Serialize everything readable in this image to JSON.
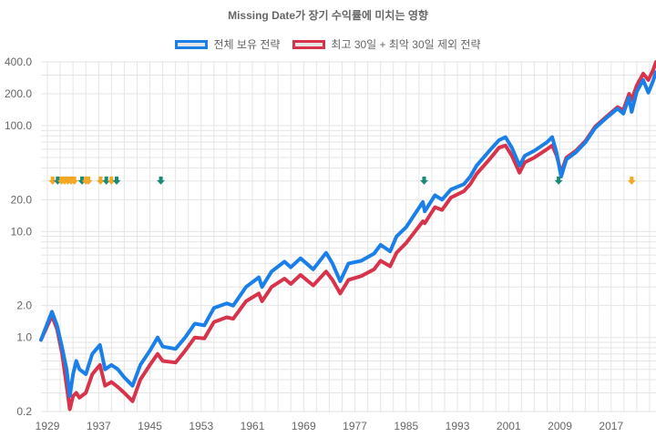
{
  "chart_data": {
    "type": "line",
    "title": "Missing Date가 장기 수익률에 미치는 영향",
    "y_scale": "log",
    "ylim": [
      0.2,
      400
    ],
    "y_ticks": [
      {
        "value": 400,
        "label": "400.0"
      },
      {
        "value": 200,
        "label": "200.0"
      },
      {
        "value": 100,
        "label": "100.0"
      },
      {
        "value": 20,
        "label": "20.0"
      },
      {
        "value": 10,
        "label": "10.0"
      },
      {
        "value": 2,
        "label": "2.0"
      },
      {
        "value": 1,
        "label": "1.0"
      },
      {
        "value": 0.2,
        "label": "0.2"
      }
    ],
    "xlim": [
      1928,
      2024
    ],
    "x_ticks": [
      "1929",
      "1937",
      "1945",
      "1953",
      "1961",
      "1969",
      "1977",
      "1985",
      "1993",
      "2001",
      "2009",
      "2017"
    ],
    "legend_position": "top",
    "series": [
      {
        "name": "전체 보유 전략",
        "color": "#1a7fe8",
        "points": [
          [
            1928.0,
            0.95
          ],
          [
            1929.7,
            1.75
          ],
          [
            1930.5,
            1.3
          ],
          [
            1931.3,
            0.8
          ],
          [
            1932.0,
            0.5
          ],
          [
            1932.5,
            0.28
          ],
          [
            1933.0,
            0.45
          ],
          [
            1933.5,
            0.6
          ],
          [
            1934.0,
            0.5
          ],
          [
            1935.0,
            0.45
          ],
          [
            1936.0,
            0.7
          ],
          [
            1937.2,
            0.85
          ],
          [
            1938.0,
            0.5
          ],
          [
            1939.0,
            0.55
          ],
          [
            1940.0,
            0.5
          ],
          [
            1941.0,
            0.42
          ],
          [
            1942.3,
            0.35
          ],
          [
            1943.5,
            0.55
          ],
          [
            1945.0,
            0.75
          ],
          [
            1946.2,
            1.0
          ],
          [
            1947.0,
            0.82
          ],
          [
            1949.0,
            0.78
          ],
          [
            1950.5,
            1.0
          ],
          [
            1952.0,
            1.35
          ],
          [
            1953.5,
            1.3
          ],
          [
            1955.0,
            1.9
          ],
          [
            1957.0,
            2.1
          ],
          [
            1958.0,
            2.0
          ],
          [
            1960.0,
            3.0
          ],
          [
            1962.0,
            3.7
          ],
          [
            1962.5,
            3.0
          ],
          [
            1964.0,
            4.2
          ],
          [
            1966.0,
            5.2
          ],
          [
            1967.0,
            4.6
          ],
          [
            1968.5,
            5.6
          ],
          [
            1970.5,
            4.4
          ],
          [
            1972.5,
            6.3
          ],
          [
            1973.5,
            5.0
          ],
          [
            1974.7,
            3.4
          ],
          [
            1976.0,
            5.0
          ],
          [
            1978.0,
            5.3
          ],
          [
            1980.0,
            6.2
          ],
          [
            1981.0,
            7.5
          ],
          [
            1982.5,
            6.5
          ],
          [
            1983.5,
            9.0
          ],
          [
            1985.0,
            11.0
          ],
          [
            1987.6,
            19.0
          ],
          [
            1987.9,
            15.5
          ],
          [
            1989.5,
            22.0
          ],
          [
            1990.6,
            20.0
          ],
          [
            1992.0,
            25.0
          ],
          [
            1994.0,
            28.0
          ],
          [
            1995.0,
            33.0
          ],
          [
            1996.0,
            42.0
          ],
          [
            1998.0,
            58.0
          ],
          [
            1999.5,
            73.0
          ],
          [
            2000.5,
            78.0
          ],
          [
            2001.5,
            62.0
          ],
          [
            2002.7,
            42.0
          ],
          [
            2003.5,
            52.0
          ],
          [
            2005.0,
            58.0
          ],
          [
            2007.0,
            70.0
          ],
          [
            2007.8,
            78.0
          ],
          [
            2008.5,
            55.0
          ],
          [
            2009.2,
            33.0
          ],
          [
            2010.0,
            48.0
          ],
          [
            2011.5,
            56.0
          ],
          [
            2013.0,
            70.0
          ],
          [
            2014.5,
            95.0
          ],
          [
            2016.0,
            115.0
          ],
          [
            2018.0,
            145.0
          ],
          [
            2018.9,
            130.0
          ],
          [
            2019.8,
            185.0
          ],
          [
            2020.2,
            135.0
          ],
          [
            2021.0,
            210.0
          ],
          [
            2022.0,
            270.0
          ],
          [
            2022.8,
            205.0
          ],
          [
            2023.5,
            260.0
          ],
          [
            2024.0,
            320.0
          ]
        ]
      },
      {
        "name": "최고 30일 + 최악 30일 제외 전략",
        "color": "#d7334b",
        "points": [
          [
            1928.0,
            0.95
          ],
          [
            1929.7,
            1.6
          ],
          [
            1930.5,
            1.2
          ],
          [
            1931.3,
            0.7
          ],
          [
            1932.0,
            0.35
          ],
          [
            1932.5,
            0.21
          ],
          [
            1933.0,
            0.28
          ],
          [
            1933.5,
            0.3
          ],
          [
            1934.0,
            0.27
          ],
          [
            1935.0,
            0.3
          ],
          [
            1936.0,
            0.45
          ],
          [
            1937.2,
            0.55
          ],
          [
            1938.0,
            0.35
          ],
          [
            1939.0,
            0.38
          ],
          [
            1940.0,
            0.34
          ],
          [
            1941.0,
            0.3
          ],
          [
            1942.3,
            0.25
          ],
          [
            1943.5,
            0.4
          ],
          [
            1945.0,
            0.55
          ],
          [
            1946.2,
            0.7
          ],
          [
            1947.0,
            0.6
          ],
          [
            1949.0,
            0.58
          ],
          [
            1950.5,
            0.75
          ],
          [
            1952.0,
            1.0
          ],
          [
            1953.5,
            0.98
          ],
          [
            1955.0,
            1.4
          ],
          [
            1957.0,
            1.55
          ],
          [
            1958.0,
            1.5
          ],
          [
            1960.0,
            2.2
          ],
          [
            1962.0,
            2.6
          ],
          [
            1962.5,
            2.2
          ],
          [
            1964.0,
            3.0
          ],
          [
            1966.0,
            3.6
          ],
          [
            1967.0,
            3.2
          ],
          [
            1968.5,
            3.9
          ],
          [
            1970.5,
            3.1
          ],
          [
            1972.5,
            4.2
          ],
          [
            1973.5,
            3.5
          ],
          [
            1974.7,
            2.6
          ],
          [
            1976.0,
            3.5
          ],
          [
            1978.0,
            3.8
          ],
          [
            1980.0,
            4.4
          ],
          [
            1981.0,
            5.3
          ],
          [
            1982.5,
            4.7
          ],
          [
            1983.5,
            6.3
          ],
          [
            1985.0,
            7.8
          ],
          [
            1987.6,
            12.5
          ],
          [
            1987.9,
            12.0
          ],
          [
            1989.5,
            17.0
          ],
          [
            1990.6,
            16.0
          ],
          [
            1992.0,
            21.0
          ],
          [
            1994.0,
            24.0
          ],
          [
            1995.0,
            28.0
          ],
          [
            1996.0,
            35.0
          ],
          [
            1998.0,
            48.0
          ],
          [
            1999.5,
            62.0
          ],
          [
            2000.5,
            65.0
          ],
          [
            2001.5,
            52.0
          ],
          [
            2002.7,
            36.0
          ],
          [
            2003.5,
            45.0
          ],
          [
            2005.0,
            50.0
          ],
          [
            2007.0,
            60.0
          ],
          [
            2007.8,
            65.0
          ],
          [
            2008.5,
            52.0
          ],
          [
            2009.2,
            36.0
          ],
          [
            2010.0,
            50.0
          ],
          [
            2011.5,
            58.0
          ],
          [
            2013.0,
            72.0
          ],
          [
            2014.5,
            98.0
          ],
          [
            2016.0,
            118.0
          ],
          [
            2018.0,
            150.0
          ],
          [
            2018.9,
            140.0
          ],
          [
            2019.8,
            200.0
          ],
          [
            2020.2,
            175.0
          ],
          [
            2021.0,
            240.0
          ],
          [
            2022.0,
            310.0
          ],
          [
            2022.8,
            270.0
          ],
          [
            2023.5,
            330.0
          ],
          [
            2024.0,
            400.0
          ]
        ]
      }
    ],
    "annotations": {
      "y_value": 30,
      "markers": [
        {
          "year": 1929.8,
          "kind": "best",
          "color": "#f5a623"
        },
        {
          "year": 1930.6,
          "kind": "worst",
          "color": "#1a8a78"
        },
        {
          "year": 1931.2,
          "kind": "best",
          "color": "#f5a623"
        },
        {
          "year": 1931.7,
          "kind": "best",
          "color": "#f5a623"
        },
        {
          "year": 1932.2,
          "kind": "best",
          "color": "#f5a623"
        },
        {
          "year": 1932.7,
          "kind": "best",
          "color": "#f5a623"
        },
        {
          "year": 1933.2,
          "kind": "best",
          "color": "#f5a623"
        },
        {
          "year": 1934.4,
          "kind": "worst",
          "color": "#1a8a78"
        },
        {
          "year": 1935.0,
          "kind": "best",
          "color": "#f5a623"
        },
        {
          "year": 1935.4,
          "kind": "best",
          "color": "#f5a623"
        },
        {
          "year": 1937.3,
          "kind": "best",
          "color": "#f5a623"
        },
        {
          "year": 1938.2,
          "kind": "worst",
          "color": "#1a8a78"
        },
        {
          "year": 1939.0,
          "kind": "best",
          "color": "#f5a623"
        },
        {
          "year": 1939.8,
          "kind": "worst",
          "color": "#1a8a78"
        },
        {
          "year": 1946.7,
          "kind": "worst",
          "color": "#1a8a78"
        },
        {
          "year": 1987.8,
          "kind": "worst",
          "color": "#1a8a78"
        },
        {
          "year": 2008.8,
          "kind": "worst",
          "color": "#1a8a78"
        },
        {
          "year": 2020.2,
          "kind": "best",
          "color": "#f5a623"
        }
      ]
    }
  }
}
